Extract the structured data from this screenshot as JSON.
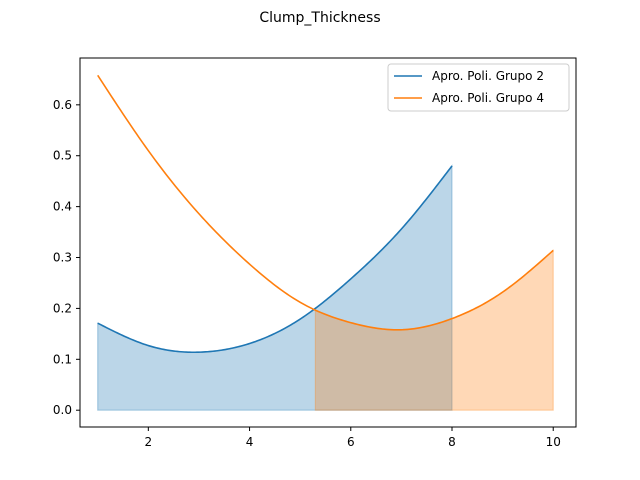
{
  "chart_data": {
    "type": "area",
    "title": "Clump_Thickness",
    "xlabel": "",
    "ylabel": "",
    "xlim": [
      0.65,
      10.45
    ],
    "ylim": [
      -0.033,
      0.692
    ],
    "x_ticks": [
      2,
      4,
      6,
      8,
      10
    ],
    "y_ticks": [
      0.0,
      0.1,
      0.2,
      0.3,
      0.4,
      0.5,
      0.6
    ],
    "x_tick_labels": [
      "2",
      "4",
      "6",
      "8",
      "10"
    ],
    "y_tick_labels": [
      "0.0",
      "0.1",
      "0.2",
      "0.3",
      "0.4",
      "0.5",
      "0.6"
    ],
    "legend": "top-right",
    "grid": false,
    "series": [
      {
        "name": "Apro. Poli. Grupo 2",
        "color": "#1f77b4",
        "x": [
          1,
          2,
          3,
          4,
          5,
          6,
          7,
          8
        ],
        "y": [
          0.171,
          0.127,
          0.114,
          0.131,
          0.179,
          0.258,
          0.356,
          0.48
        ],
        "fill_from": 1,
        "fill_to": 8
      },
      {
        "name": "Apro. Poli. Grupo 4",
        "color": "#ff7f0e",
        "x": [
          1,
          2,
          3,
          4,
          5,
          6,
          7,
          8,
          9,
          10
        ],
        "y": [
          0.658,
          0.51,
          0.386,
          0.287,
          0.212,
          0.172,
          0.158,
          0.18,
          0.232,
          0.314
        ],
        "fill_from": 5.3,
        "fill_to": 10
      }
    ]
  }
}
